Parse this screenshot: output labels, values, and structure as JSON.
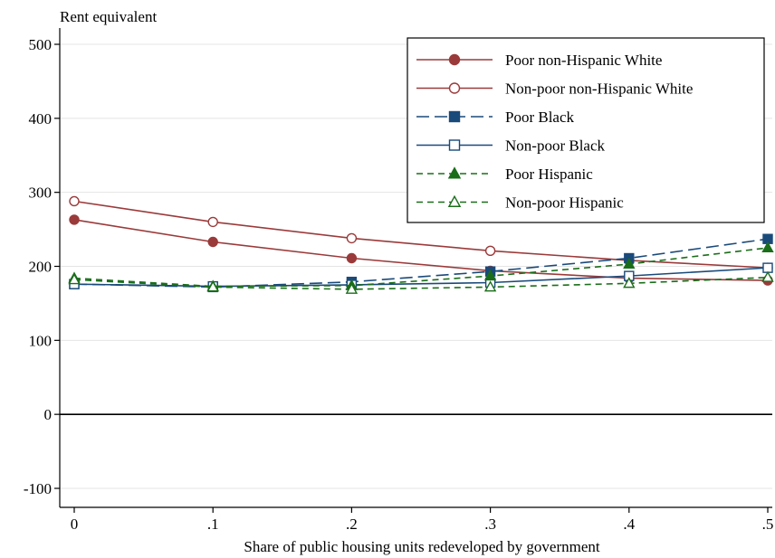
{
  "chart_data": {
    "type": "line",
    "title": "",
    "ylabel": "Rent equivalent",
    "xlabel": "Share of public housing units redeveloped by government",
    "x": [
      0,
      0.1,
      0.2,
      0.3,
      0.4,
      0.5
    ],
    "x_tick_labels": [
      "0",
      ".1",
      ".2",
      ".3",
      ".4",
      ".5"
    ],
    "y_ticks": [
      -100,
      0,
      100,
      200,
      300,
      400,
      500
    ],
    "y_tick_labels": [
      "-100",
      "0",
      "100",
      "200",
      "300",
      "400",
      "500"
    ],
    "xlim": [
      0,
      0.5
    ],
    "ylim": [
      -120,
      515
    ],
    "reference_line_y": 0,
    "grid": "horizontal",
    "legend_position": "top-right",
    "series": [
      {
        "name": "Poor non-Hispanic White",
        "values": [
          263,
          233,
          211,
          194,
          184,
          181
        ],
        "color": "#9b3a3a",
        "dash": "solid",
        "marker": "circle",
        "filled": true
      },
      {
        "name": "Non-poor non-Hispanic White",
        "values": [
          288,
          260,
          238,
          221,
          208,
          198
        ],
        "color": "#9b3a3a",
        "dash": "solid",
        "marker": "circle",
        "filled": false
      },
      {
        "name": "Poor Black",
        "values": [
          176,
          172,
          179,
          193,
          211,
          237
        ],
        "color": "#1a4a7a",
        "dash": "long-dash",
        "marker": "square",
        "filled": true
      },
      {
        "name": "Non-poor Black",
        "values": [
          176,
          173,
          175,
          178,
          187,
          198
        ],
        "color": "#1a4a7a",
        "dash": "solid",
        "marker": "square",
        "filled": false
      },
      {
        "name": "Poor Hispanic",
        "values": [
          184,
          173,
          174,
          187,
          203,
          225
        ],
        "color": "#1a6e1a",
        "dash": "short-dash",
        "marker": "triangle",
        "filled": true
      },
      {
        "name": "Non-poor Hispanic",
        "values": [
          182,
          172,
          169,
          172,
          177,
          185
        ],
        "color": "#1a6e1a",
        "dash": "short-dash",
        "marker": "triangle",
        "filled": false
      }
    ]
  }
}
